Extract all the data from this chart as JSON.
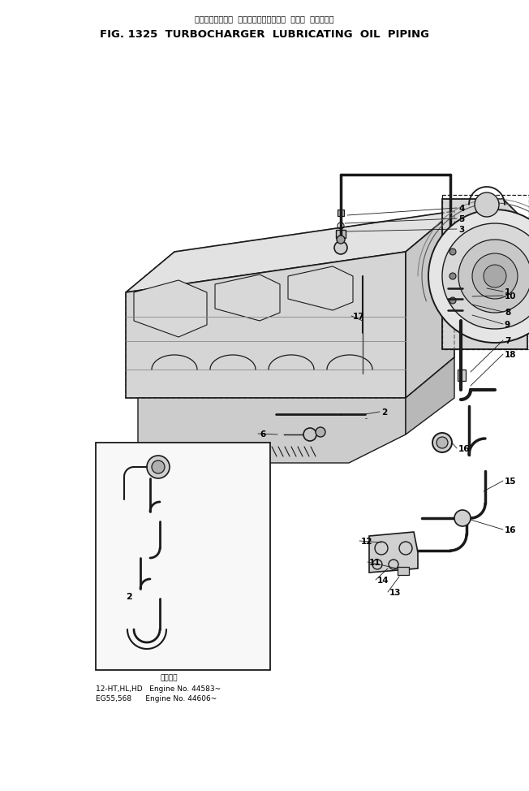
{
  "title_jp": "ターボチャージャ  ルーブリケーティング  オイル  パイピング",
  "title_en": "FIG. 1325  TURBOCHARGER  LUBRICATING  OIL  PIPING",
  "bg_color": "#ffffff",
  "title_color": "#000000",
  "caption_line0": "適用号機",
  "caption_line1": "12-HT,HL,HD   Engine No. 44583~",
  "caption_line2": "EG55,568      Engine No. 44606~",
  "figsize": [
    6.52,
    9.74
  ],
  "dpi": 100,
  "lc": "#1a1a1a"
}
